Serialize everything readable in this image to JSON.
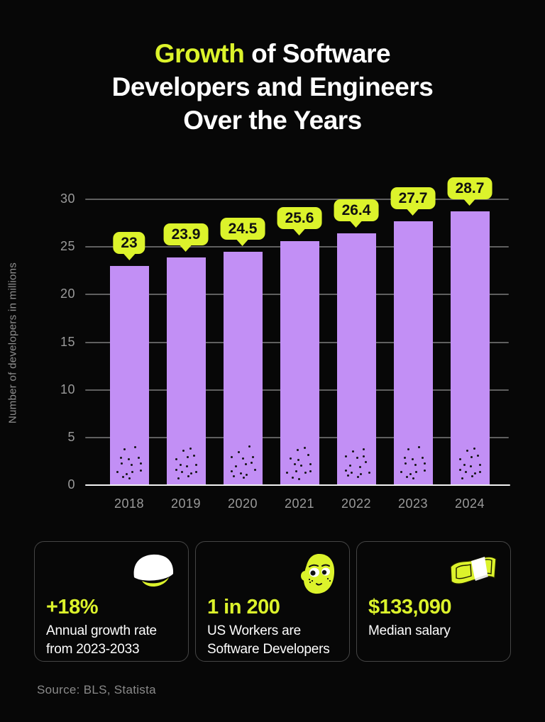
{
  "title": {
    "highlight": "Growth",
    "line1_rest": " of Software",
    "line2": "Developers and Engineers",
    "line3": "Over the Years"
  },
  "chart_data": {
    "type": "bar",
    "categories": [
      "2018",
      "2019",
      "2020",
      "2021",
      "2022",
      "2023",
      "2024"
    ],
    "values": [
      23,
      23.9,
      24.5,
      25.6,
      26.4,
      27.7,
      28.7
    ],
    "value_labels": [
      "23",
      "23.9",
      "24.5",
      "25.6",
      "26.4",
      "27.7",
      "28.7"
    ],
    "title": "Growth of Software Developers and Engineers Over the Years",
    "xlabel": "",
    "ylabel": "Number of developers in millions",
    "yticks": [
      0,
      5,
      10,
      15,
      20,
      25,
      30
    ],
    "ylim": [
      0,
      30
    ],
    "grid": true,
    "legend": "none",
    "bar_color": "#c28ff5",
    "callout_color": "#dcf32b"
  },
  "cards": [
    {
      "icon": "hard-hat-icon",
      "stat": "+18%",
      "desc_line1": "Annual growth rate",
      "desc_line2": "from 2023-2033"
    },
    {
      "icon": "face-icon",
      "stat": "1 in 200",
      "desc_line1": "US Workers are",
      "desc_line2": "Software Developers"
    },
    {
      "icon": "money-icon",
      "stat": "$133,090",
      "desc_line1": "Median salary",
      "desc_line2": ""
    }
  ],
  "source": "Source: BLS, Statista",
  "colors": {
    "background": "#070707",
    "accent": "#dcf32b",
    "bar": "#c28ff5",
    "text": "#ffffff",
    "muted": "#9a9a9a",
    "gridline": "#5f5f5f"
  }
}
